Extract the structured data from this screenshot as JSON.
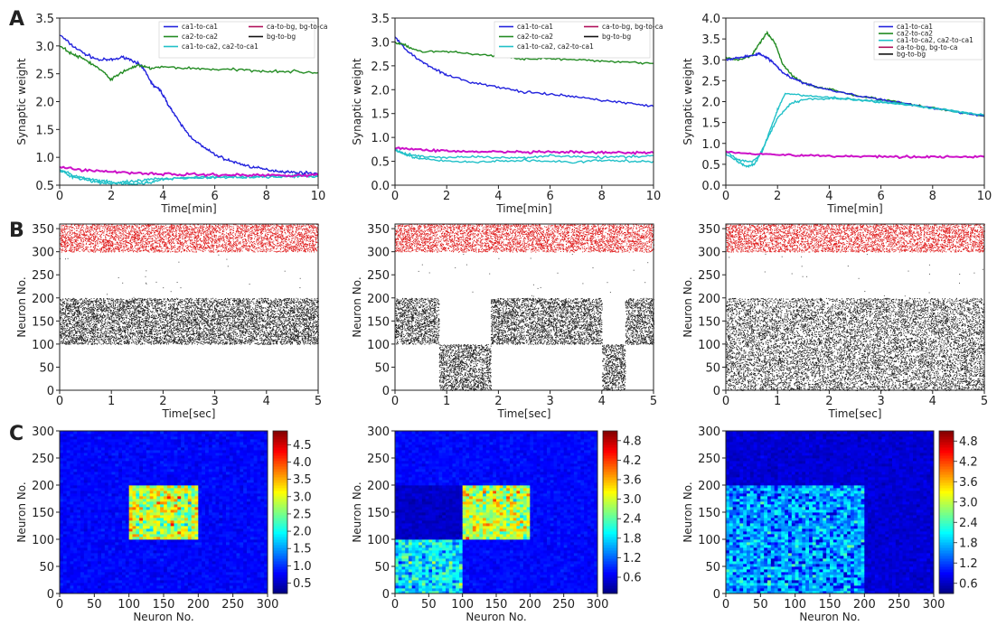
{
  "panels": [
    {
      "letter": "A"
    },
    {
      "letter": "B"
    },
    {
      "letter": "C"
    }
  ],
  "chart_data": [
    {
      "id": "A1",
      "type": "line",
      "xlabel": "Time[min]",
      "ylabel": "Synaptic weight",
      "xlim": [
        0,
        10
      ],
      "ylim": [
        0.5,
        3.5
      ],
      "xticks": [
        0,
        2,
        4,
        6,
        8,
        10
      ],
      "yticks": [
        0.5,
        1.0,
        1.5,
        2.0,
        2.5,
        3.0,
        3.5
      ],
      "legend_position": "top-right",
      "legend": [
        {
          "name": "ca1-to-ca1",
          "color": "#2222dd"
        },
        {
          "name": "ca2-to-ca2",
          "color": "#228b22"
        },
        {
          "name": "ca1-to-ca2, ca2-to-ca1",
          "color": "#20c0c8"
        },
        {
          "name": "ca-to-bg, bg-to-ca",
          "color": "#b0105a"
        },
        {
          "name": "bg-to-bg",
          "color": "#111111"
        }
      ],
      "series": [
        {
          "color": "#2222dd",
          "x": [
            0,
            0.5,
            1,
            1.5,
            2,
            2.5,
            3,
            3.3,
            3.6,
            3.9,
            4.2,
            4.6,
            5,
            5.5,
            6,
            6.5,
            7,
            7.5,
            8,
            8.5,
            9,
            9.5,
            10
          ],
          "y": [
            3.2,
            3.0,
            2.85,
            2.75,
            2.75,
            2.8,
            2.7,
            2.55,
            2.3,
            2.2,
            1.95,
            1.65,
            1.4,
            1.2,
            1.05,
            0.95,
            0.88,
            0.82,
            0.78,
            0.75,
            0.73,
            0.72,
            0.71
          ]
        },
        {
          "color": "#228b22",
          "x": [
            0,
            0.5,
            1,
            1.5,
            2,
            2.5,
            3,
            3.5,
            4,
            5,
            6,
            7,
            8,
            9,
            10
          ],
          "y": [
            3.0,
            2.85,
            2.75,
            2.6,
            2.4,
            2.55,
            2.65,
            2.6,
            2.62,
            2.6,
            2.58,
            2.57,
            2.55,
            2.54,
            2.52
          ]
        },
        {
          "color": "#20c0c8",
          "x": [
            0,
            0.5,
            1,
            1.5,
            2,
            2.5,
            3,
            3.5,
            4,
            5,
            6,
            7,
            8,
            9,
            10
          ],
          "y": [
            0.78,
            0.68,
            0.62,
            0.58,
            0.55,
            0.52,
            0.52,
            0.55,
            0.6,
            0.63,
            0.64,
            0.65,
            0.65,
            0.66,
            0.66
          ]
        },
        {
          "color": "#20c0c8",
          "x": [
            0,
            0.5,
            1,
            1.5,
            2,
            2.5,
            3,
            3.5,
            4,
            5,
            6,
            7,
            8,
            9,
            10
          ],
          "y": [
            0.76,
            0.65,
            0.6,
            0.55,
            0.53,
            0.55,
            0.57,
            0.6,
            0.62,
            0.64,
            0.65,
            0.65,
            0.66,
            0.66,
            0.66
          ]
        },
        {
          "color": "#cc10c8",
          "x": [
            0,
            1,
            2,
            3,
            4,
            5,
            6,
            7,
            8,
            9,
            10
          ],
          "y": [
            0.82,
            0.77,
            0.74,
            0.72,
            0.7,
            0.69,
            0.69,
            0.68,
            0.68,
            0.68,
            0.68
          ]
        }
      ]
    },
    {
      "id": "A2",
      "type": "line",
      "xlabel": "Time[min]",
      "ylabel": "Synaptic weight",
      "xlim": [
        0,
        10
      ],
      "ylim": [
        0.0,
        3.5
      ],
      "xticks": [
        0,
        2,
        4,
        6,
        8,
        10
      ],
      "yticks": [
        0.0,
        0.5,
        1.0,
        1.5,
        2.0,
        2.5,
        3.0,
        3.5
      ],
      "legend_position": "top-right",
      "legend": [
        {
          "name": "ca1-to-ca1",
          "color": "#2222dd"
        },
        {
          "name": "ca2-to-ca2",
          "color": "#228b22"
        },
        {
          "name": "ca1-to-ca2, ca2-to-ca1",
          "color": "#20c0c8"
        },
        {
          "name": "ca-to-bg, bg-to-ca",
          "color": "#b0105a"
        },
        {
          "name": "bg-to-bg",
          "color": "#111111"
        }
      ],
      "series": [
        {
          "color": "#2222dd",
          "x": [
            0,
            0.5,
            1,
            1.5,
            2,
            3,
            4,
            5,
            6,
            7,
            8,
            9,
            10
          ],
          "y": [
            3.1,
            2.8,
            2.6,
            2.45,
            2.3,
            2.15,
            2.05,
            1.95,
            1.9,
            1.85,
            1.78,
            1.72,
            1.65
          ]
        },
        {
          "color": "#228b22",
          "x": [
            0,
            0.5,
            1,
            2,
            3,
            4,
            5,
            6,
            7,
            8,
            9,
            10
          ],
          "y": [
            3.0,
            2.9,
            2.8,
            2.8,
            2.75,
            2.7,
            2.65,
            2.65,
            2.62,
            2.6,
            2.58,
            2.55
          ]
        },
        {
          "color": "#20c0c8",
          "x": [
            0,
            0.5,
            1,
            2,
            3,
            4,
            5,
            6,
            7,
            8,
            9,
            10
          ],
          "y": [
            0.75,
            0.62,
            0.55,
            0.5,
            0.48,
            0.5,
            0.52,
            0.5,
            0.48,
            0.52,
            0.5,
            0.5
          ]
        },
        {
          "color": "#20c0c8",
          "x": [
            0,
            0.5,
            1,
            2,
            3,
            4,
            5,
            6,
            7,
            8,
            9,
            10
          ],
          "y": [
            0.72,
            0.65,
            0.6,
            0.58,
            0.6,
            0.57,
            0.58,
            0.62,
            0.6,
            0.58,
            0.6,
            0.62
          ]
        },
        {
          "color": "#cc10c8",
          "x": [
            0,
            1,
            2,
            3,
            4,
            5,
            6,
            7,
            8,
            9,
            10
          ],
          "y": [
            0.78,
            0.74,
            0.72,
            0.7,
            0.7,
            0.69,
            0.69,
            0.69,
            0.68,
            0.68,
            0.68
          ]
        }
      ]
    },
    {
      "id": "A3",
      "type": "line",
      "xlabel": "Time[min]",
      "ylabel": "Synaptic weight",
      "xlim": [
        0,
        10
      ],
      "ylim": [
        0.0,
        4.0
      ],
      "xticks": [
        0,
        2,
        4,
        6,
        8,
        10
      ],
      "yticks": [
        0.0,
        0.5,
        1.0,
        1.5,
        2.0,
        2.5,
        3.0,
        3.5,
        4.0
      ],
      "legend_position": "top-right",
      "legend": [
        {
          "name": "ca1-to-ca1",
          "color": "#2222dd"
        },
        {
          "name": "ca2-to-ca2",
          "color": "#228b22"
        },
        {
          "name": "ca1-to-ca2, ca2-to-ca1",
          "color": "#20c0c8"
        },
        {
          "name": "ca-to-bg, bg-to-ca",
          "color": "#b0105a"
        },
        {
          "name": "bg-to-bg",
          "color": "#111111"
        }
      ],
      "series": [
        {
          "color": "#228b22",
          "x": [
            0,
            0.5,
            1,
            1.3,
            1.6,
            1.9,
            2.2,
            2.6,
            3,
            3.5,
            4,
            5,
            6,
            7,
            8,
            9,
            10
          ],
          "y": [
            3.05,
            3.0,
            3.1,
            3.4,
            3.65,
            3.4,
            2.9,
            2.6,
            2.45,
            2.35,
            2.3,
            2.15,
            2.05,
            1.95,
            1.85,
            1.75,
            1.65
          ]
        },
        {
          "color": "#2222dd",
          "x": [
            0,
            0.5,
            1,
            1.3,
            1.6,
            1.9,
            2.2,
            2.6,
            3,
            3.5,
            4,
            5,
            6,
            7,
            8,
            9,
            10
          ],
          "y": [
            3.0,
            3.05,
            3.1,
            3.15,
            3.05,
            2.9,
            2.7,
            2.55,
            2.45,
            2.35,
            2.28,
            2.15,
            2.05,
            1.95,
            1.85,
            1.75,
            1.66
          ]
        },
        {
          "color": "#20c0c8",
          "x": [
            0,
            0.5,
            0.8,
            1.1,
            1.4,
            1.7,
            2,
            2.3,
            3,
            4,
            5,
            6,
            7,
            8,
            9,
            10
          ],
          "y": [
            0.75,
            0.55,
            0.45,
            0.5,
            0.8,
            1.3,
            1.8,
            2.2,
            2.15,
            2.1,
            2.05,
            1.98,
            1.92,
            1.85,
            1.75,
            1.68
          ]
        },
        {
          "color": "#20c0c8",
          "x": [
            0,
            0.5,
            1,
            1.3,
            1.6,
            2,
            2.5,
            3,
            4,
            5,
            6,
            7,
            8,
            9,
            10
          ],
          "y": [
            0.8,
            0.6,
            0.55,
            0.7,
            1.1,
            1.6,
            1.95,
            2.05,
            2.08,
            2.05,
            2.0,
            1.93,
            1.85,
            1.76,
            1.68
          ]
        },
        {
          "color": "#cc10c8",
          "x": [
            0,
            1,
            2,
            3,
            4,
            5,
            6,
            7,
            8,
            9,
            10
          ],
          "y": [
            0.8,
            0.76,
            0.73,
            0.71,
            0.7,
            0.69,
            0.69,
            0.68,
            0.68,
            0.68,
            0.68
          ]
        }
      ]
    },
    {
      "id": "B1",
      "type": "scatter",
      "xlabel": "Time[sec]",
      "ylabel": "Neuron No.",
      "xlim": [
        0,
        5
      ],
      "ylim": [
        0,
        360
      ],
      "xticks": [
        0,
        1,
        2,
        3,
        4,
        5
      ],
      "yticks": [
        0,
        50,
        100,
        150,
        200,
        250,
        300,
        350
      ],
      "raster_blocks": [
        {
          "neurons": [
            300,
            360
          ],
          "t": [
            0,
            5
          ],
          "color": "#e02020",
          "density": 0.5
        },
        {
          "neurons": [
            100,
            200
          ],
          "t": [
            0,
            5
          ],
          "color": "#222222",
          "density": 0.55
        }
      ]
    },
    {
      "id": "B2",
      "type": "scatter",
      "xlabel": "Time[sec]",
      "ylabel": "Neuron No.",
      "xlim": [
        0,
        5
      ],
      "ylim": [
        0,
        360
      ],
      "xticks": [
        0,
        1,
        2,
        3,
        4,
        5
      ],
      "yticks": [
        0,
        50,
        100,
        150,
        200,
        250,
        300,
        350
      ],
      "raster_blocks": [
        {
          "neurons": [
            300,
            360
          ],
          "t": [
            0,
            5
          ],
          "color": "#e02020",
          "density": 0.5
        },
        {
          "neurons": [
            100,
            200
          ],
          "t": [
            0,
            0.85
          ],
          "color": "#222222",
          "density": 0.55
        },
        {
          "neurons": [
            0,
            100
          ],
          "t": [
            0.85,
            1.85
          ],
          "color": "#222222",
          "density": 0.55
        },
        {
          "neurons": [
            100,
            200
          ],
          "t": [
            1.85,
            4.0
          ],
          "color": "#222222",
          "density": 0.55
        },
        {
          "neurons": [
            0,
            100
          ],
          "t": [
            4.0,
            4.45
          ],
          "color": "#222222",
          "density": 0.55
        },
        {
          "neurons": [
            100,
            200
          ],
          "t": [
            4.45,
            5
          ],
          "color": "#222222",
          "density": 0.55
        }
      ]
    },
    {
      "id": "B3",
      "type": "scatter",
      "xlabel": "Time[sec]",
      "ylabel": "Neuron No.",
      "xlim": [
        0,
        5
      ],
      "ylim": [
        0,
        360
      ],
      "xticks": [
        0,
        1,
        2,
        3,
        4,
        5
      ],
      "yticks": [
        0,
        50,
        100,
        150,
        200,
        250,
        300,
        350
      ],
      "raster_blocks": [
        {
          "neurons": [
            300,
            360
          ],
          "t": [
            0,
            5
          ],
          "color": "#e02020",
          "density": 0.5
        },
        {
          "neurons": [
            0,
            200
          ],
          "t": [
            0,
            5
          ],
          "color": "#222222",
          "density": 0.38
        }
      ]
    },
    {
      "id": "C1",
      "type": "heatmap",
      "xlabel": "Neuron No.",
      "ylabel": "Neuron No.",
      "xlim": [
        0,
        300
      ],
      "ylim": [
        0,
        300
      ],
      "xticks": [
        0,
        50,
        100,
        150,
        200,
        250,
        300
      ],
      "yticks": [
        0,
        50,
        100,
        150,
        200,
        250,
        300
      ],
      "colorbar_min": 0.2,
      "colorbar_max": 4.9,
      "colorbar_ticks": [
        "4.5",
        "4.0",
        "3.5",
        "3.0",
        "2.5",
        "2.0",
        "1.5",
        "1.0",
        "0.5"
      ],
      "background_value": 0.8,
      "blocks": [
        {
          "x": [
            100,
            200
          ],
          "y": [
            100,
            200
          ],
          "mean": 2.9,
          "spread": 1.3
        }
      ]
    },
    {
      "id": "C2",
      "type": "heatmap",
      "xlabel": "Neuron No.",
      "ylabel": "Neuron No.",
      "xlim": [
        0,
        300
      ],
      "ylim": [
        0,
        300
      ],
      "xticks": [
        0,
        50,
        100,
        150,
        200,
        250,
        300
      ],
      "yticks": [
        0,
        50,
        100,
        150,
        200,
        250,
        300
      ],
      "colorbar_min": 0.1,
      "colorbar_max": 5.1,
      "colorbar_ticks": [
        "4.8",
        "4.2",
        "3.6",
        "3.0",
        "2.4",
        "1.8",
        "1.2",
        "0.6"
      ],
      "background_value": 0.75,
      "blocks": [
        {
          "x": [
            100,
            200
          ],
          "y": [
            100,
            200
          ],
          "mean": 2.9,
          "spread": 1.3
        },
        {
          "x": [
            0,
            100
          ],
          "y": [
            0,
            100
          ],
          "mean": 1.9,
          "spread": 1.1
        },
        {
          "x": [
            0,
            100
          ],
          "y": [
            100,
            200
          ],
          "mean": 0.45,
          "spread": 0.2
        }
      ]
    },
    {
      "id": "C3",
      "type": "heatmap",
      "xlabel": "Neuron No.",
      "ylabel": "Neuron No.",
      "xlim": [
        0,
        300
      ],
      "ylim": [
        0,
        300
      ],
      "xticks": [
        0,
        50,
        100,
        150,
        200,
        250,
        300
      ],
      "yticks": [
        0,
        50,
        100,
        150,
        200,
        250,
        300
      ],
      "colorbar_min": 0.3,
      "colorbar_max": 5.1,
      "colorbar_ticks": [
        "4.8",
        "4.2",
        "3.6",
        "3.0",
        "2.4",
        "1.8",
        "1.2",
        "0.6"
      ],
      "background_value": 0.7,
      "blocks": [
        {
          "x": [
            0,
            200
          ],
          "y": [
            0,
            200
          ],
          "mean": 1.7,
          "spread": 0.9
        }
      ]
    }
  ]
}
